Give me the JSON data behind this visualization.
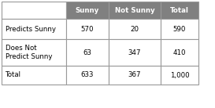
{
  "col_headers": [
    "Sunny",
    "Not Sunny",
    "Total"
  ],
  "row_labels": [
    "Predicts Sunny",
    "Does Not\nPredict Sunny",
    "Total"
  ],
  "values": [
    [
      "570",
      "20",
      "590"
    ],
    [
      "63",
      "347",
      "410"
    ],
    [
      "633",
      "367",
      "1,000"
    ]
  ],
  "header_bg": "#808080",
  "header_fg": "#ffffff",
  "cell_bg": "#ffffff",
  "border_color": "#999999",
  "font_size": 6.2,
  "header_font_size": 6.2,
  "fig_w": 2.73,
  "fig_h": 1.38,
  "dpi": 100
}
